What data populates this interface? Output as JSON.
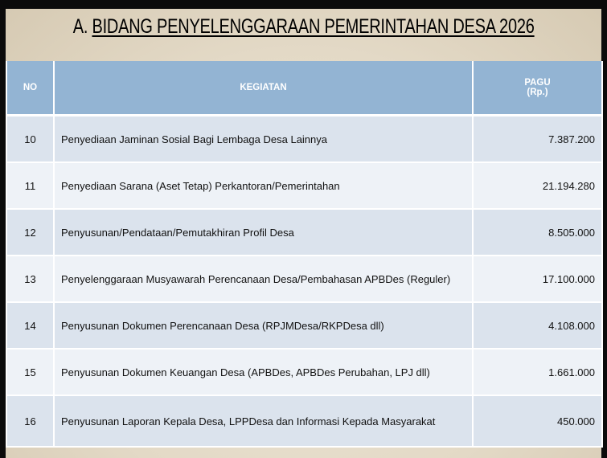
{
  "title": {
    "prefix": "A.",
    "main": "BIDANG PENYELENGGARAAN PEMERINTAHAN DESA 2026"
  },
  "table": {
    "headers": {
      "no": "NO",
      "kegiatan": "KEGIATAN",
      "pagu_line1": "PAGU",
      "pagu_line2": "(Rp.)"
    },
    "rows": [
      {
        "no": "10",
        "kegiatan": "Penyediaan Jaminan Sosial Bagi Lembaga Desa Lainnya",
        "pagu": "7.387.200"
      },
      {
        "no": "11",
        "kegiatan": "Penyediaan Sarana (Aset Tetap) Perkantoran/Pemerintahan",
        "pagu": "21.194.280"
      },
      {
        "no": "12",
        "kegiatan": "Penyusunan/Pendataan/Pemutakhiran Profil Desa",
        "pagu": "8.505.000"
      },
      {
        "no": "13",
        "kegiatan": "Penyelenggaraan Musyawarah Perencanaan Desa/Pembahasan APBDes (Reguler)",
        "pagu": "17.100.000"
      },
      {
        "no": "14",
        "kegiatan": "Penyusunan Dokumen Perencanaan Desa (RPJMDesa/RKPDesa dll)",
        "pagu": "4.108.000"
      },
      {
        "no": "15",
        "kegiatan": "Penyusunan Dokumen Keuangan Desa (APBDes, APBDes Perubahan, LPJ dll)",
        "pagu": "1.661.000"
      },
      {
        "no": "16",
        "kegiatan": "Penyusunan Laporan Kepala Desa, LPPDesa dan Informasi Kepada Masyarakat",
        "pagu": "450.000"
      }
    ]
  },
  "colors": {
    "header": "#93b4d3",
    "row_odd": "#dbe3ed",
    "row_even": "#eef2f7",
    "spellcheck": "#e03030"
  }
}
